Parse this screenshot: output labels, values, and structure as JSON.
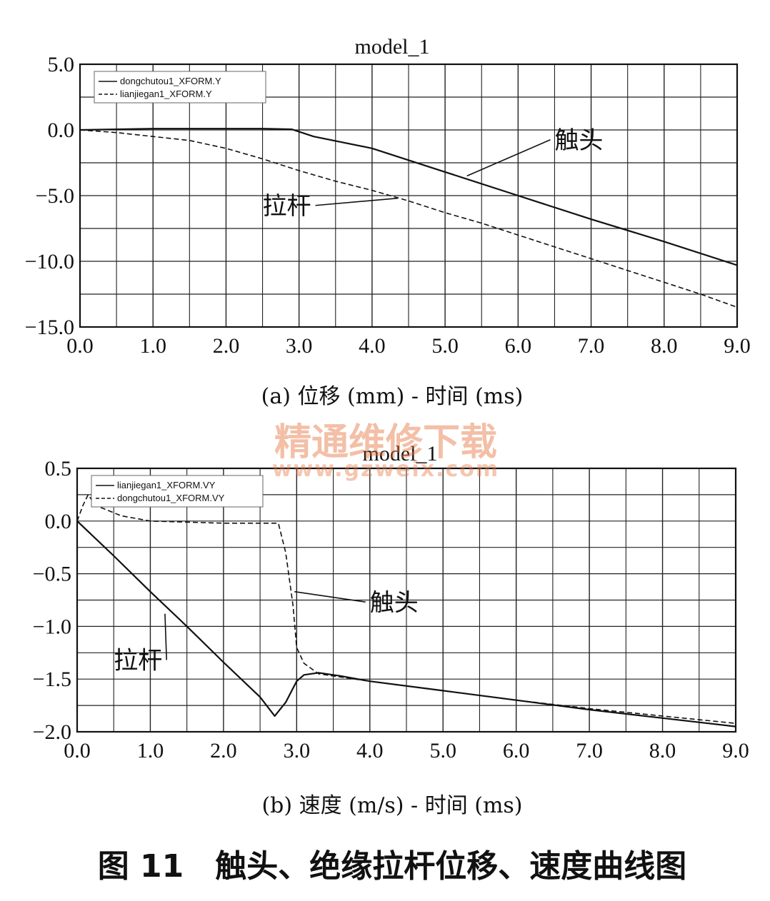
{
  "figure_caption": "图 11　触头、绝缘拉杆位移、速度曲线图",
  "watermark": {
    "text_cn": "精通维修下载",
    "text_url": "www.gzweix.com",
    "color": "#e6733d"
  },
  "chart_data": [
    {
      "type": "line",
      "title": "model_1",
      "caption": "(a) 位移 (mm) - 时间 (ms)",
      "xlim": [
        0,
        9
      ],
      "ylim": [
        -15,
        5
      ],
      "xticks": [
        0,
        1,
        2,
        3,
        4,
        5,
        6,
        7,
        8,
        9
      ],
      "xtick_labels": [
        "0.0",
        "1.0",
        "2.0",
        "3.0",
        "4.0",
        "5.0",
        "6.0",
        "7.0",
        "8.0",
        "9.0"
      ],
      "yticks": [
        5,
        0,
        -5,
        -10,
        -15
      ],
      "ytick_labels": [
        "5.0",
        "0.0",
        "−5.0",
        "−10.0",
        "−15.0"
      ],
      "grid": true,
      "legend_position": "top-left",
      "series": [
        {
          "name": "dongchutou1_XFORM.Y",
          "style": "solid",
          "x": [
            0,
            0.5,
            1,
            2,
            2.5,
            2.9,
            3.2,
            4,
            5,
            6,
            7,
            8,
            9
          ],
          "y": [
            0,
            0.05,
            0.1,
            0.1,
            0.1,
            0.05,
            -0.5,
            -1.4,
            -3.2,
            -5.0,
            -6.8,
            -8.5,
            -10.3
          ]
        },
        {
          "name": "lianjiegan1_XFORM.Y",
          "style": "dashed",
          "x": [
            0,
            0.5,
            1,
            1.5,
            2,
            2.5,
            3,
            3.5,
            4,
            4.5,
            5,
            5.5,
            6,
            6.5,
            7,
            7.5,
            8,
            8.5,
            9
          ],
          "y": [
            0,
            -0.2,
            -0.5,
            -0.8,
            -1.4,
            -2.2,
            -3.1,
            -3.9,
            -4.6,
            -5.4,
            -6.3,
            -7.1,
            -8.0,
            -8.9,
            -9.8,
            -10.7,
            -11.6,
            -12.5,
            -13.5
          ]
        }
      ],
      "annotations": [
        {
          "text": "触头",
          "x": 6.5,
          "y": -1.4,
          "target_x": 5.3,
          "target_y": -3.5
        },
        {
          "text": "拉杆",
          "x": 2.5,
          "y": -6.4,
          "target_x": 4.35,
          "target_y": -5.2
        }
      ]
    },
    {
      "type": "line",
      "title": "model_1",
      "caption": "(b) 速度 (m/s) - 时间 (ms)",
      "xlim": [
        0,
        9
      ],
      "ylim": [
        -2,
        0.5
      ],
      "xticks": [
        0,
        1,
        2,
        3,
        4,
        5,
        6,
        7,
        8,
        9
      ],
      "xtick_labels": [
        "0.0",
        "1.0",
        "2.0",
        "3.0",
        "4.0",
        "5.0",
        "6.0",
        "7.0",
        "8.0",
        "9.0"
      ],
      "yticks": [
        0.5,
        0,
        -0.5,
        -1,
        -1.5,
        -2
      ],
      "ytick_labels": [
        "0.5",
        "0.0",
        "−0.5",
        "−1.0",
        "−1.5",
        "−2.0"
      ],
      "grid": true,
      "legend_position": "top-left",
      "series": [
        {
          "name": "lianjiegan1_XFORM.VY",
          "style": "solid",
          "x": [
            0,
            0.5,
            1,
            1.5,
            2,
            2.5,
            2.7,
            2.85,
            3.0,
            3.1,
            3.3,
            3.6,
            4,
            5,
            6,
            7,
            8,
            9
          ],
          "y": [
            0,
            -0.33,
            -0.67,
            -1.0,
            -1.34,
            -1.67,
            -1.85,
            -1.72,
            -1.52,
            -1.46,
            -1.44,
            -1.47,
            -1.52,
            -1.61,
            -1.7,
            -1.79,
            -1.87,
            -1.95
          ]
        },
        {
          "name": "dongchutou1_XFORM.VY",
          "style": "dashed",
          "x": [
            0,
            0.08,
            0.15,
            0.25,
            0.6,
            1,
            1.5,
            2,
            2.5,
            2.75,
            2.85,
            2.95,
            3.0,
            3.1,
            3.3,
            4,
            5,
            6,
            7,
            8,
            9
          ],
          "y": [
            0,
            0.15,
            0.25,
            0.15,
            0.05,
            0.0,
            -0.01,
            -0.02,
            -0.02,
            -0.02,
            -0.3,
            -0.8,
            -1.2,
            -1.35,
            -1.45,
            -1.52,
            -1.61,
            -1.7,
            -1.78,
            -1.85,
            -1.92
          ]
        }
      ],
      "annotations": [
        {
          "text": "触头",
          "x": 4.0,
          "y": -0.85,
          "target_x": 2.97,
          "target_y": -0.67
        },
        {
          "text": "拉杆",
          "x": 0.5,
          "y": -1.4,
          "target_x": 1.2,
          "target_y": -0.88
        }
      ]
    }
  ]
}
